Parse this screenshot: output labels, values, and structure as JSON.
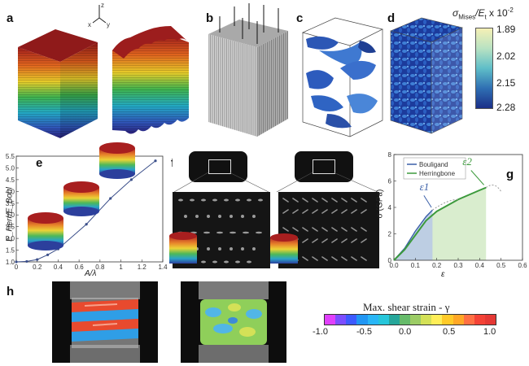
{
  "panels": {
    "a": {
      "label": "a",
      "axes": {
        "z": "z",
        "x": "x",
        "y": "y"
      }
    },
    "b": {
      "label": "b"
    },
    "c": {
      "label": "c"
    },
    "d": {
      "label": "d"
    },
    "e": {
      "label": "e"
    },
    "f": {
      "label": "f"
    },
    "g": {
      "label": "g"
    },
    "h": {
      "label": "h"
    }
  },
  "colorbar_d": {
    "title_main": "σ",
    "title_sub": "Mises",
    "title_rest": "/E",
    "title_sub2": "t",
    "title_exp": " x 10",
    "title_sup": "-2",
    "ticks": [
      "1.89",
      "2.02",
      "2.15",
      "2.28"
    ],
    "colors": [
      "#f5f0b5",
      "#b8e2c2",
      "#5fbec8",
      "#2f6fb3",
      "#1b2f88"
    ]
  },
  "chart_data": [
    {
      "type": "line",
      "panel": "e",
      "title": "",
      "xlabel": "A/λ",
      "ylabel": "E_Herr/E_Boul",
      "xlim": [
        0,
        1.4
      ],
      "ylim": [
        1.0,
        5.5
      ],
      "xticks": [
        "0",
        "0.2",
        "0.4",
        "0.6",
        "0.8",
        "1",
        "1.2",
        "1.4"
      ],
      "yticks": [
        "1.0",
        "1.5",
        "2.0",
        "2.5",
        "3.0",
        "3.5",
        "4.0",
        "4.5",
        "5.0",
        "5.5"
      ],
      "series": [
        {
          "x": [
            0,
            0.1,
            0.2,
            0.3,
            0.4,
            0.67,
            0.9,
            1.1,
            1.33
          ],
          "y": [
            1.0,
            1.02,
            1.1,
            1.3,
            1.55,
            2.6,
            3.7,
            4.5,
            5.3
          ]
        }
      ]
    },
    {
      "type": "line",
      "panel": "g",
      "title": "",
      "xlabel": "ε",
      "ylabel": "σ (GPa)",
      "xlim": [
        0,
        0.6
      ],
      "ylim": [
        0,
        8
      ],
      "xticks": [
        "0.0",
        "0.1",
        "0.2",
        "0.3",
        "0.4",
        "0.5",
        "0.6"
      ],
      "yticks": [
        "0",
        "2",
        "4",
        "6",
        "8"
      ],
      "annotations": [
        "ε1",
        "ε2"
      ],
      "series": [
        {
          "name": "Bouligand",
          "color": "#3a5fa8",
          "x": [
            0,
            0.05,
            0.1,
            0.15,
            0.18
          ],
          "y": [
            0,
            0.9,
            2.2,
            3.3,
            3.8
          ]
        },
        {
          "name": "Herringbone",
          "color": "#3c9a3c",
          "x": [
            0,
            0.05,
            0.1,
            0.15,
            0.2,
            0.3,
            0.4,
            0.43
          ],
          "y": [
            0,
            0.8,
            1.9,
            3.0,
            3.7,
            4.6,
            5.3,
            5.5
          ]
        }
      ]
    }
  ],
  "colorbar_h": {
    "title": "Max. shear strain - γ",
    "ticks": [
      "-1.0",
      "-0.5",
      "0.0",
      "0.5",
      "1.0"
    ],
    "colors": [
      "#e040fb",
      "#7c4dff",
      "#3d5afe",
      "#2196f3",
      "#29b6f6",
      "#26c6da",
      "#26a69a",
      "#66bb6a",
      "#9ccc65",
      "#d4e157",
      "#ffee58",
      "#ffca28",
      "#ffa726",
      "#ff7043",
      "#f44336",
      "#e53935"
    ]
  }
}
